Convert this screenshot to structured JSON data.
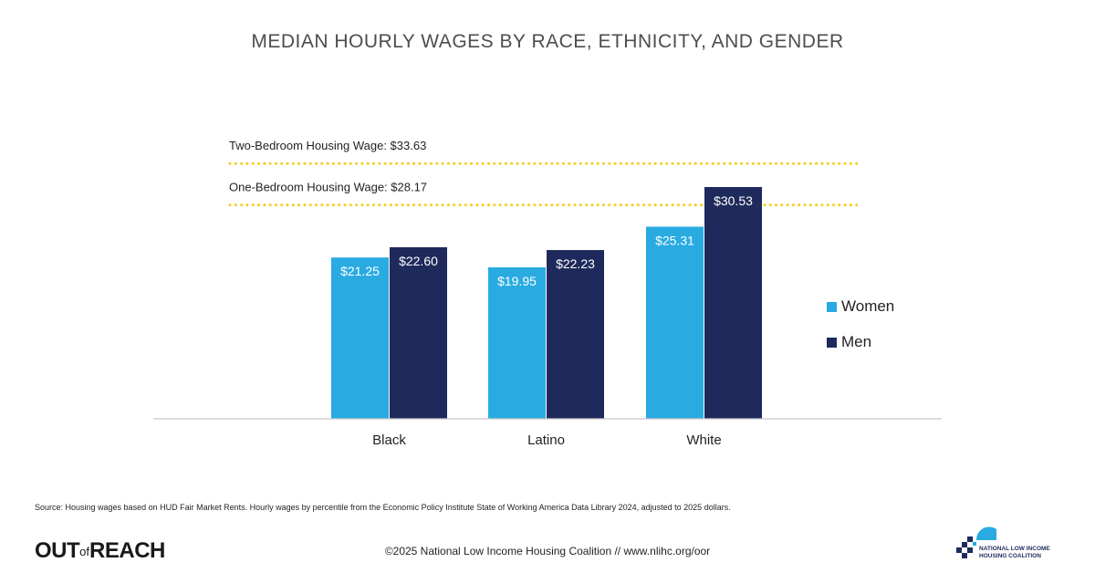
{
  "chart_data": {
    "type": "bar",
    "title": "MEDIAN HOURLY WAGES BY RACE, ETHNICITY, AND GENDER",
    "categories": [
      "Black",
      "Latino",
      "White"
    ],
    "series": [
      {
        "name": "Women",
        "color": "#29abe2",
        "values": [
          21.25,
          19.95,
          25.31
        ],
        "labels": [
          "$21.25",
          "$19.95",
          "$25.31"
        ]
      },
      {
        "name": "Men",
        "color": "#1f2a5c",
        "values": [
          22.6,
          22.23,
          30.53
        ],
        "labels": [
          "$22.60",
          "$22.23",
          "$30.53"
        ]
      }
    ],
    "reference_lines": [
      {
        "label": "Two-Bedroom Housing Wage: $33.63",
        "value": 33.63,
        "color": "#f5cc1c"
      },
      {
        "label": "One-Bedroom Housing Wage: $28.17",
        "value": 28.17,
        "color": "#f5cc1c"
      }
    ],
    "ylim": [
      0,
      40
    ],
    "grid": false,
    "legend_position": "right"
  },
  "source_note": "Source: Housing wages based on HUD Fair Market Rents. Hourly wages by percentile from the Economic Policy Institute State of Working America Data Library 2024, adjusted to 2025 dollars.",
  "footer": {
    "brand_main_1": "OUT",
    "brand_of": "of",
    "brand_main_2": "REACH",
    "copyright": "©2025 National Low Income Housing Coalition // www.nlihc.org/oor",
    "org_name_line1": "NATIONAL LOW INCOME",
    "org_name_line2": "HOUSING COALITION"
  }
}
